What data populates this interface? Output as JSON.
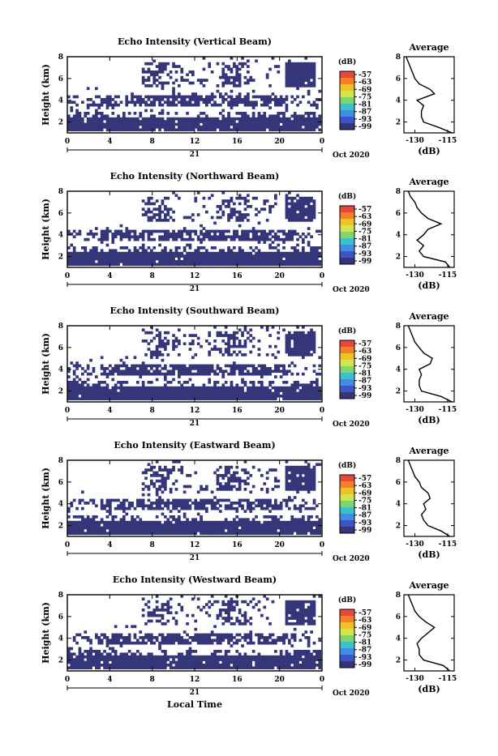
{
  "figure": {
    "xlabel": "Local Time",
    "date_label": "Oct 2020",
    "day_label": "21",
    "colorbar_unit": "(dB)",
    "colorbar_ticks": [
      "-57",
      "-63",
      "-69",
      "-75",
      "-81",
      "-87",
      "-93",
      "-99"
    ],
    "colorbar_colors": [
      "#e8473b",
      "#f57d2c",
      "#f2c12a",
      "#d6e34a",
      "#7fd66b",
      "#3dc0c8",
      "#3f8fe0",
      "#3c55c9",
      "#35357a"
    ],
    "echo_color": "#35357a"
  },
  "chart_data": [
    {
      "type": "heatmap",
      "title": "Echo Intensity (Vertical Beam)",
      "xlabel": "",
      "ylabel": "Height (km)",
      "xlim": [
        0,
        24
      ],
      "ylim": [
        1,
        8
      ],
      "xticks": [
        "0",
        "4",
        "8",
        "12",
        "16",
        "20",
        "0"
      ],
      "yticks": [
        "2",
        "4",
        "6",
        "8"
      ],
      "profile": {
        "title": "Average",
        "xlabel": "(dB)",
        "xticks": [
          "-130",
          "-115"
        ],
        "xlim": [
          -135,
          -112
        ],
        "yticks": [
          "2",
          "4",
          "6",
          "8"
        ],
        "ylim": [
          1,
          8
        ],
        "h": [
          1.0,
          1.5,
          2.0,
          2.5,
          3.0,
          3.5,
          4.0,
          4.3,
          4.6,
          5.0,
          5.5,
          6.0,
          6.5,
          7.0,
          7.5,
          8.0
        ],
        "dB": [
          -113,
          -119,
          -126,
          -127,
          -127,
          -126,
          -129,
          -125,
          -121,
          -123,
          -128,
          -130,
          -131,
          -132,
          -133,
          -134
        ]
      }
    },
    {
      "type": "heatmap",
      "title": "Echo Intensity (Northward Beam)",
      "xlabel": "",
      "ylabel": "Height (km)",
      "xlim": [
        0,
        24
      ],
      "ylim": [
        1,
        8
      ],
      "xticks": [
        "0",
        "4",
        "8",
        "12",
        "16",
        "20",
        "0"
      ],
      "yticks": [
        "2",
        "4",
        "6",
        "8"
      ],
      "profile": {
        "title": "Average",
        "xlabel": "(dB)",
        "xticks": [
          "-130",
          "-115"
        ],
        "xlim": [
          -135,
          -112
        ],
        "yticks": [
          "2",
          "4",
          "6",
          "8"
        ],
        "ylim": [
          1,
          8
        ],
        "h": [
          1.0,
          1.5,
          2.0,
          2.5,
          3.0,
          3.5,
          4.0,
          4.5,
          5.0,
          5.5,
          6.0,
          6.5,
          7.0,
          7.5,
          8.0
        ],
        "dB": [
          -114,
          -116,
          -126,
          -128,
          -126,
          -129,
          -126,
          -124,
          -118,
          -124,
          -127,
          -129,
          -130,
          -132,
          -133
        ]
      }
    },
    {
      "type": "heatmap",
      "title": "Echo Intensity (Southward Beam)",
      "xlabel": "",
      "ylabel": "Height (km)",
      "xlim": [
        0,
        24
      ],
      "ylim": [
        1,
        8
      ],
      "xticks": [
        "0",
        "4",
        "8",
        "12",
        "16",
        "20",
        "0"
      ],
      "yticks": [
        "2",
        "4",
        "6",
        "8"
      ],
      "profile": {
        "title": "Average",
        "xlabel": "(dB)",
        "xticks": [
          "-130",
          "-115"
        ],
        "xlim": [
          -135,
          -112
        ],
        "yticks": [
          "2",
          "4",
          "6",
          "8"
        ],
        "ylim": [
          1,
          8
        ],
        "h": [
          1.0,
          1.5,
          2.0,
          2.5,
          3.0,
          3.5,
          4.0,
          4.5,
          5.0,
          5.5,
          6.0,
          6.5,
          7.0,
          7.5,
          8.0
        ],
        "dB": [
          -113,
          -118,
          -127,
          -128,
          -128,
          -127,
          -128,
          -123,
          -122,
          -126,
          -128,
          -130,
          -131,
          -132,
          -133
        ]
      }
    },
    {
      "type": "heatmap",
      "title": "Echo Intensity (Eastward Beam)",
      "xlabel": "",
      "ylabel": "Height (km)",
      "xlim": [
        0,
        24
      ],
      "ylim": [
        1,
        8
      ],
      "xticks": [
        "0",
        "4",
        "8",
        "12",
        "16",
        "20",
        "0"
      ],
      "yticks": [
        "2",
        "4",
        "6",
        "8"
      ],
      "profile": {
        "title": "Average",
        "xlabel": "(dB)",
        "xticks": [
          "-130",
          "-115"
        ],
        "xlim": [
          -135,
          -112
        ],
        "yticks": [
          "2",
          "4",
          "6",
          "8"
        ],
        "ylim": [
          1,
          8
        ],
        "h": [
          1.0,
          1.5,
          2.0,
          2.5,
          3.0,
          3.5,
          4.0,
          4.5,
          5.0,
          5.5,
          6.0,
          6.5,
          7.0,
          7.5,
          8.0
        ],
        "dB": [
          -114,
          -118,
          -124,
          -126,
          -127,
          -125,
          -126,
          -123,
          -124,
          -127,
          -128,
          -130,
          -131,
          -132,
          -133
        ]
      }
    },
    {
      "type": "heatmap",
      "title": "Echo Intensity (Westward Beam)",
      "xlabel": "Local Time",
      "ylabel": "Height (km)",
      "xlim": [
        0,
        24
      ],
      "ylim": [
        1,
        8
      ],
      "xticks": [
        "0",
        "4",
        "8",
        "12",
        "16",
        "20",
        "0"
      ],
      "yticks": [
        "2",
        "4",
        "6",
        "8"
      ],
      "profile": {
        "title": "Average",
        "xlabel": "(dB)",
        "xticks": [
          "-130",
          "-115"
        ],
        "xlim": [
          -135,
          -112
        ],
        "yticks": [
          "2",
          "4",
          "6",
          "8"
        ],
        "ylim": [
          1,
          8
        ],
        "h": [
          1.0,
          1.5,
          2.0,
          2.5,
          3.0,
          3.5,
          4.0,
          4.5,
          5.0,
          5.5,
          6.0,
          6.5,
          7.0,
          7.5,
          8.0
        ],
        "dB": [
          -114,
          -117,
          -126,
          -128,
          -128,
          -129,
          -127,
          -124,
          -121,
          -125,
          -128,
          -130,
          -131,
          -132,
          -133
        ]
      }
    }
  ]
}
